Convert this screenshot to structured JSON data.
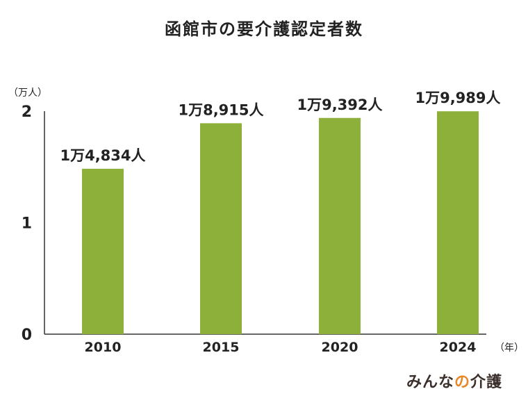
{
  "chart_data": {
    "type": "bar",
    "title": "函館市の要介護認定者数",
    "y_unit_label": "（万人）",
    "x_unit_label": "（年）",
    "categories": [
      "2010",
      "2015",
      "2020",
      "2024"
    ],
    "values": [
      1.4834,
      1.8915,
      1.9392,
      1.9989
    ],
    "data_labels": [
      "1万4,834人",
      "1万8,915人",
      "1万9,392人",
      "1万9,989人"
    ],
    "ylim": [
      0,
      2
    ],
    "y_ticks": [
      "0",
      "1",
      "2"
    ],
    "grid": false,
    "bar_color": "#8db03a"
  },
  "logo": {
    "part1": "みんな",
    "part2": "の",
    "part3": "介護"
  }
}
